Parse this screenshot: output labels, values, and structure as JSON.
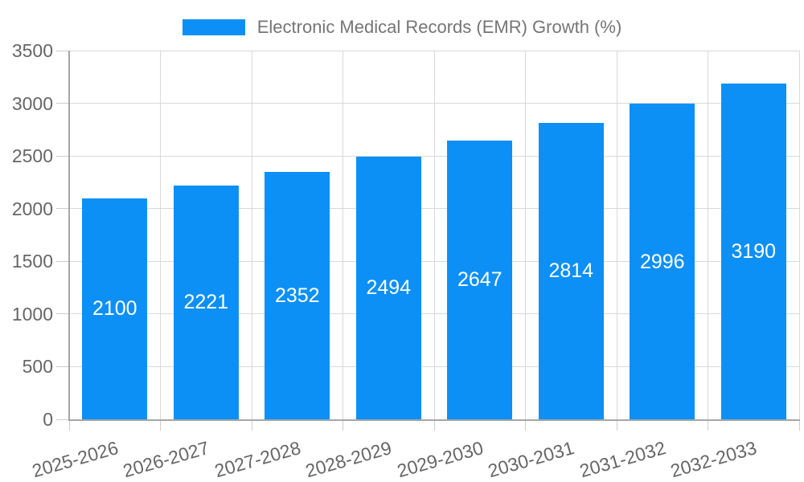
{
  "chart_data": {
    "type": "bar",
    "title": "",
    "legend_label": "Electronic Medical Records (EMR) Growth (%)",
    "legend_position": "top",
    "categories": [
      "2025-2026",
      "2026-2027",
      "2027-2028",
      "2028-2029",
      "2029-2030",
      "2030-2031",
      "2031-2032",
      "2032-2033"
    ],
    "values": [
      2100,
      2221,
      2352,
      2494,
      2647,
      2814,
      2996,
      3190
    ],
    "value_labels_shown": true,
    "value_label_position": "inside-center",
    "xlabel": "",
    "ylabel": "",
    "ylim": [
      0,
      3500
    ],
    "ytick_step": 500,
    "ytick_labels": [
      "0",
      "500",
      "1000",
      "1500",
      "2000",
      "2500",
      "3000",
      "3500"
    ],
    "grid": true,
    "colors": {
      "bar": "#0d90f5",
      "value_label": "#ffffff",
      "axis_text": "#666666",
      "legend_text": "#757575",
      "gridline": "#d9d9d9",
      "axis_line": "#a6a6a6",
      "tick": "#cccccc",
      "background": "#ffffff"
    }
  }
}
